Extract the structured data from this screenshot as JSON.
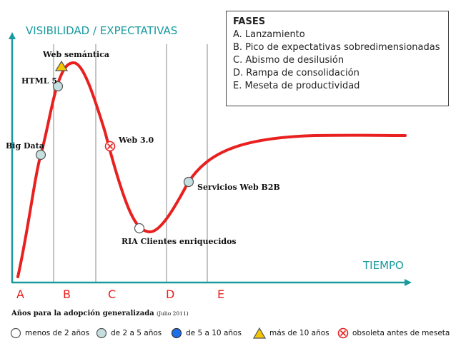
{
  "diagram": {
    "y_axis_title": "VISIBILIDAD / EXPECTATIVAS",
    "x_axis_title": "TIEMPO",
    "phase_letters": [
      "A",
      "B",
      "C",
      "D",
      "E"
    ],
    "colors": {
      "axis": "#1a9a9e",
      "curve": "#e8201f",
      "phase_letters": "#e8201f",
      "dividers": "#888888",
      "marker_light_blue": "#c5dfe0",
      "marker_white": "#ffffff",
      "marker_blue": "#1e6fe8",
      "marker_yellow": "#f2c500",
      "marker_obsolete": "#e8201f"
    },
    "technologies": [
      {
        "label": "Big Data",
        "marker": "light-blue-circle"
      },
      {
        "label": "HTML 5",
        "marker": "light-blue-circle"
      },
      {
        "label": "Web semántica",
        "marker": "yellow-triangle"
      },
      {
        "label": "Web 3.0",
        "marker": "obsolete-x-circle"
      },
      {
        "label": "RIA Clientes enriquecidos",
        "marker": "white-circle"
      },
      {
        "label": "Servicios Web B2B",
        "marker": "light-blue-circle"
      }
    ]
  },
  "fases": {
    "title": "FASES",
    "items": [
      "A. Lanzamiento",
      "B. Pico de expectativas sobredimensionadas",
      "C. Abismo de desilusión",
      "D. Rampa de consolidación",
      "E. Meseta de productividad"
    ]
  },
  "footer": {
    "title": "Años para la adopción generalizada",
    "note": "(Julio 2011)"
  },
  "legend": {
    "items": [
      {
        "label": "menos de 2 años",
        "icon": "white-circle-icon"
      },
      {
        "label": "de 2 a 5 años",
        "icon": "light-blue-circle-icon"
      },
      {
        "label": "de 5 a 10 años",
        "icon": "blue-circle-icon"
      },
      {
        "label": "más de 10 años",
        "icon": "yellow-triangle-icon"
      },
      {
        "label": "obsoleta antes de meseta",
        "icon": "obsolete-x-circle-icon"
      }
    ]
  }
}
